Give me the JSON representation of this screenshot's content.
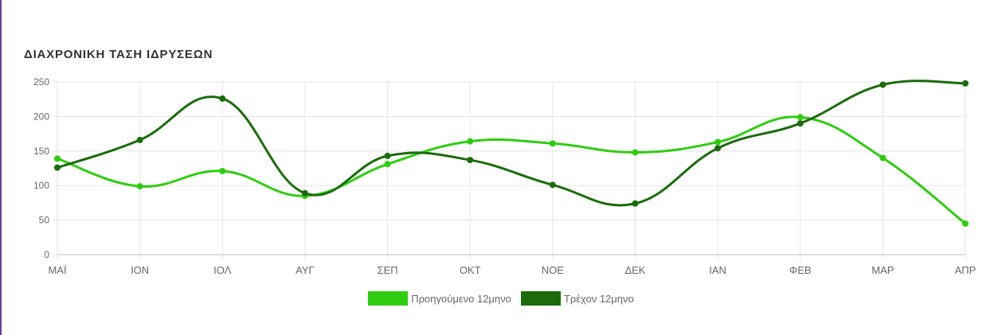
{
  "title": "ΔΙΑΧΡΟΝΙΚΗ ΤΑΣΗ ΙΔΡΥΣΕΩΝ",
  "legend": {
    "previous": "Προηγούμενο 12μηνο",
    "current": "Τρέχον 12μηνο"
  },
  "colors": {
    "previous": "#2ecc0f",
    "current": "#1b6b0c",
    "grid": "#e5e5e5",
    "axis_text": "#666666",
    "accent_rule": "#6a3fa0"
  },
  "chart_data": {
    "type": "line",
    "title": "ΔΙΑΧΡΟΝΙΚΗ ΤΑΣΗ ΙΔΡΥΣΕΩΝ",
    "xlabel": "",
    "ylabel": "",
    "categories": [
      "ΜΑΪ",
      "ΙΟΝ",
      "ΙΟΛ",
      "ΑΥΓ",
      "ΣΕΠ",
      "ΟΚΤ",
      "ΝΟΕ",
      "ΔΕΚ",
      "ΙΑΝ",
      "ΦΕΒ",
      "ΜΑΡ",
      "ΑΠΡ"
    ],
    "yticks": [
      0,
      50,
      100,
      150,
      200,
      250
    ],
    "ylim": [
      0,
      250
    ],
    "grid": true,
    "legend_position": "bottom",
    "series": [
      {
        "name": "Προηγούμενο 12μηνο",
        "color": "#2ecc0f",
        "values": [
          139,
          99,
          121,
          85,
          131,
          164,
          161,
          148,
          163,
          199,
          140,
          45
        ]
      },
      {
        "name": "Τρέχον 12μηνο",
        "color": "#1b6b0c",
        "values": [
          126,
          166,
          226,
          89,
          143,
          137,
          101,
          74,
          154,
          190,
          246,
          248
        ]
      }
    ]
  }
}
